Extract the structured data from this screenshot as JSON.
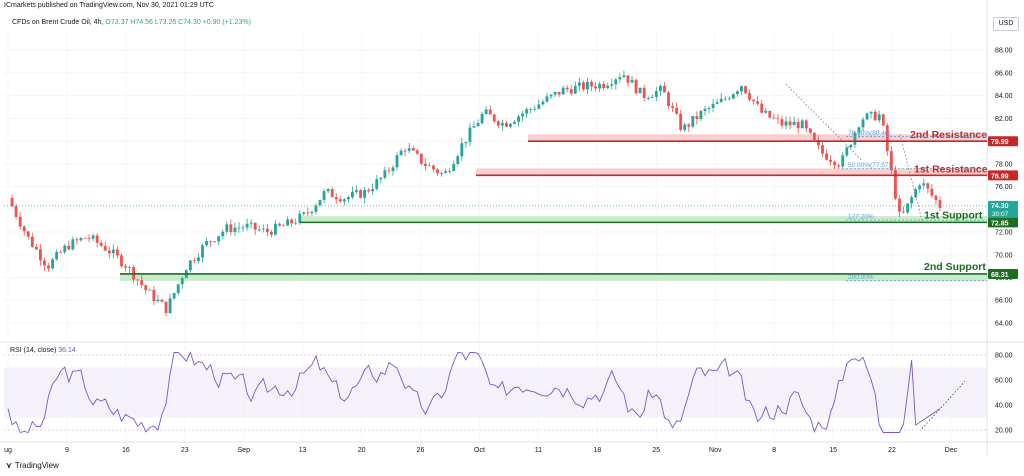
{
  "header": {
    "publisher_text": "ICmarkets published on TradingView.com, Nov 30, 2021 01:29 UTC",
    "symbol": "CFDs on Brent Crude Oil, 4h,",
    "ohlc": "O73.37  H74.56  L73.26  C74.30",
    "change": "+0.90 (+1.23%)",
    "currency": "USD"
  },
  "rsi": {
    "title": "RSI (14, close)",
    "value": "36.14",
    "ticks": [
      "80.00",
      "60.00",
      "40.00",
      "20.00"
    ],
    "tick_values": [
      80,
      60,
      40,
      20
    ]
  },
  "footer": {
    "brand": "TradingView"
  },
  "colors": {
    "up": "#26a69a",
    "down": "#ef5350",
    "resistance": "#c62828",
    "resistance_zone": "#f8c8c8",
    "support": "#1b6e20",
    "support_zone": "#bfe7c3",
    "rsi_line": "#7e57c2",
    "fib_line": "#5c9fd6"
  },
  "chart_data": {
    "type": "candlestick",
    "title": "CFDs on Brent Crude Oil, 4h",
    "ylim": [
      62.5,
      89.6
    ],
    "yticks": [
      88.0,
      86.0,
      84.0,
      82.0,
      80.0,
      78.0,
      76.0,
      74.0,
      72.0,
      70.0,
      68.0,
      66.0,
      64.0
    ],
    "ytick_labels": [
      "88.00",
      "86.00",
      "84.00",
      "82.00",
      "80.00",
      "78.00",
      "76.00",
      "74.00",
      "72.00",
      "70.00",
      "68.00",
      "66.00",
      "64.00"
    ],
    "xticks": [
      "ug",
      "9",
      "16",
      "23",
      "Sep",
      "13",
      "20",
      "26",
      "Oct",
      "11",
      "18",
      "25",
      "Nov",
      "8",
      "15",
      "22",
      "Dec"
    ],
    "price_path": [
      {
        "date": "Aug 3",
        "price": 75.0
      },
      {
        "date": "Aug 6",
        "price": 71.5
      },
      {
        "date": "Aug 9",
        "price": 69.0
      },
      {
        "date": "Aug 11",
        "price": 70.8
      },
      {
        "date": "Aug 13",
        "price": 71.6
      },
      {
        "date": "Aug 16",
        "price": 70.5
      },
      {
        "date": "Aug 17",
        "price": 69.0
      },
      {
        "date": "Aug 19",
        "price": 66.8
      },
      {
        "date": "Aug 22",
        "price": 65.2
      },
      {
        "date": "Aug 24",
        "price": 69.0
      },
      {
        "date": "Aug 26",
        "price": 71.0
      },
      {
        "date": "Aug 30",
        "price": 72.3
      },
      {
        "date": "Sep 3",
        "price": 72.5
      },
      {
        "date": "Sep 7",
        "price": 72.0
      },
      {
        "date": "Sep 10",
        "price": 72.6
      },
      {
        "date": "Sep 13",
        "price": 73.5
      },
      {
        "date": "Sep 16",
        "price": 75.5
      },
      {
        "date": "Sep 19",
        "price": 75.0
      },
      {
        "date": "Sep 22",
        "price": 75.5
      },
      {
        "date": "Sep 24",
        "price": 77.0
      },
      {
        "date": "Sep 27",
        "price": 79.5
      },
      {
        "date": "Sep 30",
        "price": 78.0
      },
      {
        "date": "Oct 1",
        "price": 77.0
      },
      {
        "date": "Oct 4",
        "price": 80.0
      },
      {
        "date": "Oct 6",
        "price": 82.5
      },
      {
        "date": "Oct 8",
        "price": 81.5
      },
      {
        "date": "Oct 11",
        "price": 82.5
      },
      {
        "date": "Oct 13",
        "price": 83.5
      },
      {
        "date": "Oct 15",
        "price": 84.5
      },
      {
        "date": "Oct 18",
        "price": 84.8
      },
      {
        "date": "Oct 21",
        "price": 85.0
      },
      {
        "date": "Oct 25",
        "price": 86.0
      },
      {
        "date": "Oct 28",
        "price": 84.0
      },
      {
        "date": "Nov 1",
        "price": 84.5
      },
      {
        "date": "Nov 4",
        "price": 81.0
      },
      {
        "date": "Nov 5",
        "price": 82.5
      },
      {
        "date": "Nov 8",
        "price": 83.5
      },
      {
        "date": "Nov 10",
        "price": 85.0
      },
      {
        "date": "Nov 12",
        "price": 82.5
      },
      {
        "date": "Nov 15",
        "price": 81.5
      },
      {
        "date": "Nov 17",
        "price": 81.5
      },
      {
        "date": "Nov 19",
        "price": 79.0
      },
      {
        "date": "Nov 21",
        "price": 78.0
      },
      {
        "date": "Nov 23",
        "price": 82.0
      },
      {
        "date": "Nov 25",
        "price": 82.3
      },
      {
        "date": "Nov 26",
        "price": 73.0
      },
      {
        "date": "Nov 28",
        "price": 76.5
      },
      {
        "date": "Nov 29",
        "price": 74.3
      }
    ],
    "levels": [
      {
        "name": "2nd Resistance",
        "price": 79.99,
        "label": "79.99",
        "kind": "resistance",
        "zone": [
          79.99,
          80.6
        ]
      },
      {
        "name": "1st Resistance",
        "price": 76.99,
        "label": "76.99",
        "kind": "resistance",
        "zone": [
          76.99,
          77.6
        ]
      },
      {
        "name": "1st Support",
        "price": 72.85,
        "label": "72.85",
        "kind": "support",
        "zone": [
          72.85,
          73.4
        ]
      },
      {
        "name": "2nd Support",
        "price": 68.31,
        "label": "68.31",
        "kind": "support",
        "zone": [
          67.7,
          68.31
        ]
      }
    ],
    "fibs": [
      {
        "label": "78.60%(80.40)",
        "price": 80.4
      },
      {
        "label": "50.00%(77.57)",
        "price": 77.57
      },
      {
        "label": "127.20%",
        "price": 73.05
      },
      {
        "label": "200.00%",
        "price": 67.72
      }
    ],
    "last_price": {
      "label": "74.30",
      "countdown": "30:07",
      "price": 74.3
    }
  }
}
